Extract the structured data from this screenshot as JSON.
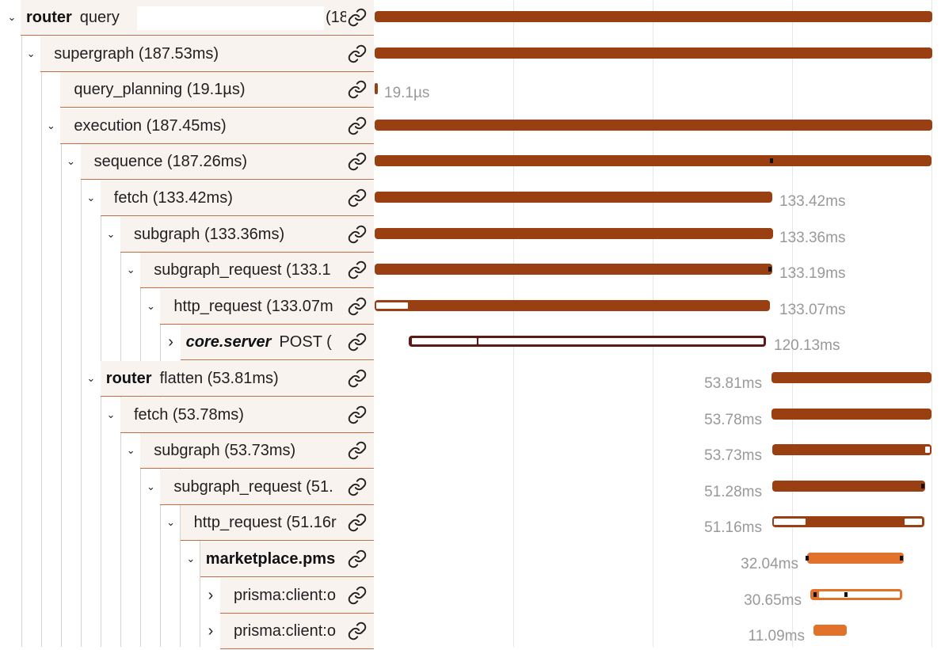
{
  "root": {
    "service": "router",
    "name": "query",
    "duration_clip": "(18",
    "search_value": ""
  },
  "spans": [
    {
      "service": "",
      "label": "supergraph (187.53ms)",
      "bar_label": ""
    },
    {
      "service": "",
      "label": "query_planning (19.1µs)",
      "bar_label": "19.1µs"
    },
    {
      "service": "",
      "label": "execution (187.45ms)",
      "bar_label": ""
    },
    {
      "service": "",
      "label": "sequence (187.26ms)",
      "bar_label": ""
    },
    {
      "service": "",
      "label": "fetch (133.42ms)",
      "bar_label": "133.42ms"
    },
    {
      "service": "",
      "label": "subgraph (133.36ms)",
      "bar_label": "133.36ms"
    },
    {
      "service": "",
      "label": "subgraph_request (133.1",
      "bar_label": "133.19ms"
    },
    {
      "service": "",
      "label": "http_request (133.07m",
      "bar_label": "133.07ms"
    },
    {
      "service": "core.server",
      "label": "POST (",
      "bar_label": "120.13ms"
    },
    {
      "service": "router",
      "label": "flatten (53.81ms)",
      "bar_label": "53.81ms"
    },
    {
      "service": "",
      "label": "fetch (53.78ms)",
      "bar_label": "53.78ms"
    },
    {
      "service": "",
      "label": "subgraph (53.73ms)",
      "bar_label": "53.73ms"
    },
    {
      "service": "",
      "label": "subgraph_request (51.",
      "bar_label": "51.28ms"
    },
    {
      "service": "",
      "label": "http_request (51.16r",
      "bar_label": "51.16ms"
    },
    {
      "service": "marketplace.pms",
      "label": "",
      "bar_label": "32.04ms"
    },
    {
      "service": "",
      "label": "prisma:client:o",
      "bar_label": "30.65ms"
    },
    {
      "service": "",
      "label": "prisma:client:o",
      "bar_label": "11.09ms"
    }
  ],
  "colors": {
    "bar_primary": "#9a3f12",
    "bar_secondary": "#e0722c",
    "label_background": "#f9f3f0",
    "duration_text": "#999999"
  },
  "icons": {
    "row_link": "link-icon",
    "expanded": "chevron-down-icon",
    "collapsed": "chevron-right-icon"
  }
}
